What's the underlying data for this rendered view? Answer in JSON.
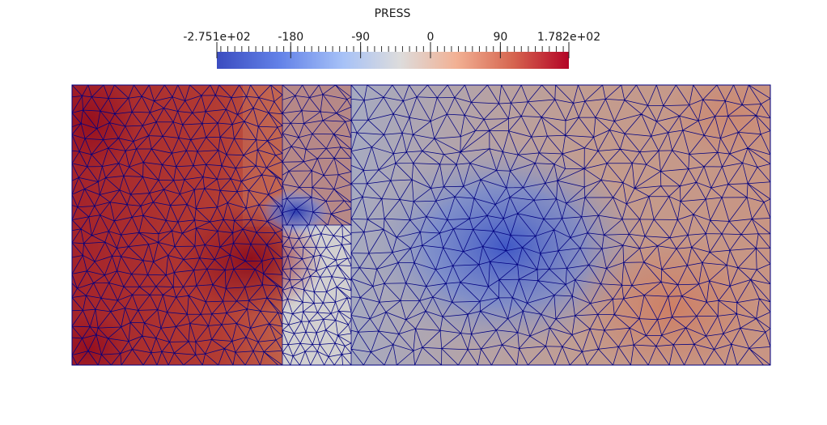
{
  "colorbar": {
    "title": "PRESS",
    "range": [
      -275.1,
      178.2
    ],
    "tick_labels": [
      "-2.751e+02",
      "-180",
      "-90",
      "0",
      "90",
      "1.782e+02"
    ],
    "tick_values": [
      -275.1,
      -180,
      -90,
      0,
      90,
      178.2
    ],
    "colormap": {
      "name": "cool-to-warm",
      "low": "#3b4cc0",
      "mid": "#dddddd",
      "high": "#b40426"
    }
  },
  "mesh": {
    "element_type": "triangle",
    "edge_color": "#000080",
    "background_color": "#ffffff"
  }
}
